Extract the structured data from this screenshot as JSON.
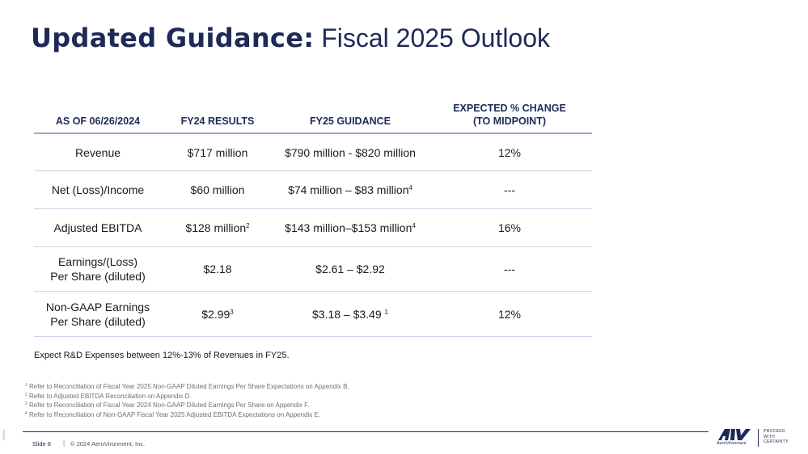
{
  "title": {
    "bold": "Updated Guidance:",
    "light": "Fiscal 2025 Outlook"
  },
  "table": {
    "headers": {
      "col1": "AS OF 06/26/2024",
      "col2": "FY24 RESULTS",
      "col3": "FY25 GUIDANCE",
      "col4_line1": "EXPECTED % CHANGE",
      "col4_line2": "(TO MIDPOINT)"
    },
    "rows": [
      {
        "metric": "Revenue",
        "fy24": "$717 million",
        "fy25": "$790 million - $820 million",
        "change": "12%"
      },
      {
        "metric": "Net (Loss)/Income",
        "fy24": "$60 million",
        "fy25": "$74 million – $83 million",
        "fy25_sup": "4",
        "change": "---"
      },
      {
        "metric": "Adjusted EBITDA",
        "fy24": "$128 million",
        "fy24_sup": "2",
        "fy25": "$143 million–$153 million",
        "fy25_sup": "4",
        "change": "16%"
      },
      {
        "metric_line1": "Earnings/(Loss)",
        "metric_line2": "Per Share (diluted)",
        "fy24": "$2.18",
        "fy25": "$2.61 – $2.92",
        "change": "---"
      },
      {
        "metric_line1": "Non-GAAP Earnings",
        "metric_line2": "Per Share (diluted)",
        "fy24": "$2.99",
        "fy24_sup": "3",
        "fy25": "$3.18 – $3.49",
        "fy25_sup": "1",
        "change": "12%"
      }
    ]
  },
  "note": "Expect R&D Expenses between 12%-13% of Revenues in FY25.",
  "footnotes": [
    {
      "num": "1",
      "text": "Refer to Reconciliation of Fiscal Year 2025 Non-GAAP Diluted Earnings Per Share Expectations on Appendix B."
    },
    {
      "num": "2",
      "text": "Refer to Adjusted EBITDA Reconciliation on Appendix D."
    },
    {
      "num": "3",
      "text": "Refer to Reconciliation of Fiscal Year 2024 Non-GAAP Diluted Earnings Per Share on Appendix F."
    },
    {
      "num": "4",
      "text": "Refer to Reconciliation of Non-GAAP Fiscal Year 2025 Adjusted EBITDA Expectations on Appendix E."
    }
  ],
  "footer": {
    "side_code": "062024",
    "slide": "Slide 8",
    "separator": "|",
    "copyright": "© 2024 AeroVironment, Inc.",
    "logo_name": "AeroVironment",
    "tagline": [
      "PROCEED",
      "WITH",
      "CERTAINTY"
    ]
  },
  "colors": {
    "brand_navy": "#1e2a56",
    "rule": "#9aaad0"
  }
}
